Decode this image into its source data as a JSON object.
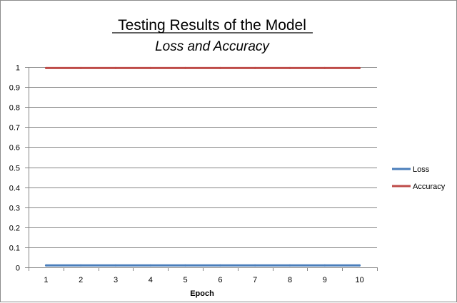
{
  "chart_data": {
    "type": "line",
    "title": "Testing Results of the Model",
    "subtitle": "Loss and Accuracy",
    "xlabel": "Epoch",
    "ylabel": "",
    "x": [
      1,
      2,
      3,
      4,
      5,
      6,
      7,
      8,
      9,
      10
    ],
    "x_tick_labels": [
      "1",
      "2",
      "3",
      "4",
      "5",
      "6",
      "7",
      "8",
      "9",
      "10"
    ],
    "y_tick_labels": [
      "0",
      "0.1",
      "0.2",
      "0.3",
      "0.4",
      "0.5",
      "0.6",
      "0.7",
      "0.8",
      "0.9",
      "1"
    ],
    "y_ticks": [
      0,
      0.1,
      0.2,
      0.3,
      0.4,
      0.5,
      0.6,
      0.7,
      0.8,
      0.9,
      1
    ],
    "ylim": [
      0,
      1
    ],
    "grid": "horizontal",
    "legend_position": "right",
    "series": [
      {
        "name": "Loss",
        "color": "#4a7ebb",
        "values": [
          0.01,
          0.01,
          0.01,
          0.01,
          0.01,
          0.01,
          0.01,
          0.01,
          0.01,
          0.01
        ]
      },
      {
        "name": "Accuracy",
        "color": "#be4b48",
        "values": [
          0.995,
          0.995,
          0.995,
          0.995,
          0.995,
          0.995,
          0.995,
          0.995,
          0.995,
          0.995
        ]
      }
    ]
  }
}
